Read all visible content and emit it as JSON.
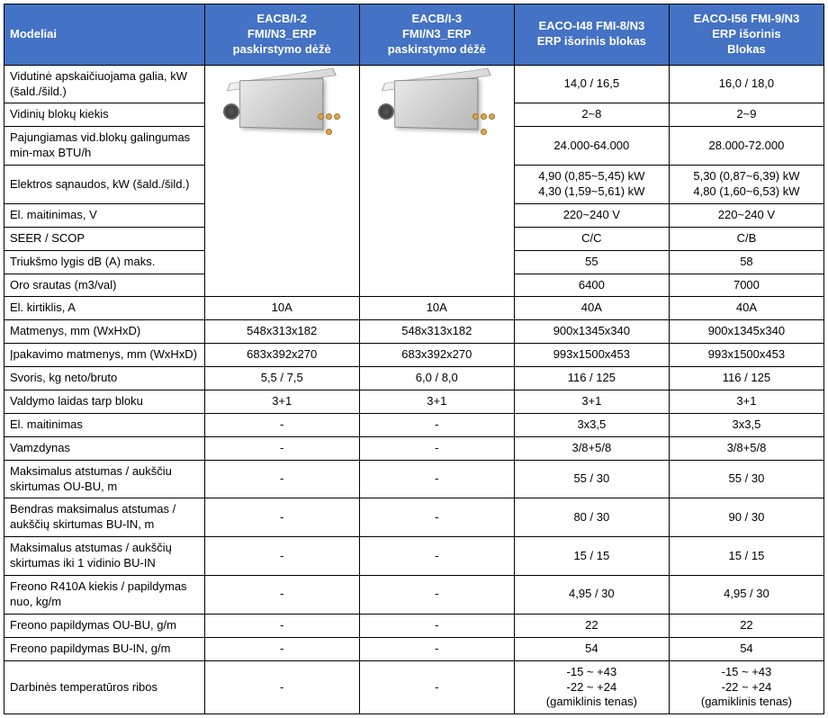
{
  "header": {
    "label": "Modeliai",
    "cols": [
      "EACB/I-2\nFMI/N3_ERP\npaskirstymo dėžė",
      "EACB/I-3\nFMI/N3_ERP\npaskirstymo dėžė",
      "EACO-I48 FMI-8/N3\nERP išorinis blokas",
      "EACO-I56 FMI-9/N3\nERP išorinis\nBlokas"
    ]
  },
  "rows": [
    {
      "label": "Vidutinė apskaičiuojama galia, kW (šald./šild.)",
      "c3": "14,0 / 16,5",
      "c4": "16,0 / 18,0",
      "image_row": true
    },
    {
      "label": "Vidinių blokų kiekis",
      "c3": "2~8",
      "c4": "2~9",
      "image_row": true
    },
    {
      "label": "Pajungiamas vid.blokų galingumas min-max BTU/h",
      "c3": "24.000-64.000",
      "c4": "28.000-72.000",
      "image_row": true
    },
    {
      "label": "Elektros sąnaudos, kW (šald./šild.)",
      "c3": "4,90 (0,85~5,45) kW\n4,30 (1,59~5,61) kW",
      "c4": "5,30 (0,87~6,39) kW\n4,80 (1,60~6,53) kW",
      "image_row": true
    },
    {
      "label": "El. maitinimas, V",
      "c3": "220~240 V",
      "c4": "220~240 V",
      "image_row": true
    },
    {
      "label": "SEER / SCOP",
      "c3": "C/C",
      "c4": "C/B",
      "image_row": true
    },
    {
      "label": "Triukšmo lygis dB (A) maks.",
      "c3": "55",
      "c4": "58",
      "image_row": true
    },
    {
      "label": "Oro srautas (m3/val)",
      "c3": "6400",
      "c4": "7000",
      "image_row": true
    },
    {
      "label": "El. kirtiklis, A",
      "c1": "10A",
      "c2": "10A",
      "c3": "40A",
      "c4": "40A"
    },
    {
      "label": "Matmenys, mm (WxHxD)",
      "c1": "548x313x182",
      "c2": "548x313x182",
      "c3": "900x1345x340",
      "c4": "900x1345x340"
    },
    {
      "label": "Įpakavimo matmenys, mm (WxHxD)",
      "c1": "683x392x270",
      "c2": "683x392x270",
      "c3": "993x1500x453",
      "c4": "993x1500x453"
    },
    {
      "label": "Svoris, kg neto/bruto",
      "c1": "5,5 / 7,5",
      "c2": "6,0 / 8,0",
      "c3": "116 / 125",
      "c4": "116 / 125"
    },
    {
      "label": "Valdymo laidas tarp bloku",
      "c1": "3+1",
      "c2": "3+1",
      "c3": "3+1",
      "c4": "3+1"
    },
    {
      "label": "El. maitinimas",
      "c1": "-",
      "c2": "-",
      "c3": "3x3,5",
      "c4": "3x3,5"
    },
    {
      "label": "Vamzdynas",
      "c1": "-",
      "c2": "-",
      "c3": "3/8+5/8",
      "c4": "3/8+5/8"
    },
    {
      "label": "Maksimalus atstumas / aukščiu skirtumas OU-BU, m",
      "c1": "-",
      "c2": "-",
      "c3": "55 / 30",
      "c4": "55 / 30"
    },
    {
      "label": "Bendras maksimalus atstumas / aukščių skirtumas BU-IN, m",
      "c1": "-",
      "c2": "-",
      "c3": "80 / 30",
      "c4": "90 / 30"
    },
    {
      "label": "Maksimalus atstumas / aukščių skirtumas iki 1 vidinio BU-IN",
      "c1": "-",
      "c2": "-",
      "c3": "15 / 15",
      "c4": "15 / 15"
    },
    {
      "label": "Freono R410A kiekis / papildymas nuo, kg/m",
      "c1": "-",
      "c2": "-",
      "c3": "4,95 / 30",
      "c4": "4,95 / 30"
    },
    {
      "label": "Freono papildymas OU-BU, g/m",
      "c1": "-",
      "c2": "-",
      "c3": "22",
      "c4": "22"
    },
    {
      "label": "Freono papildymas BU-IN, g/m",
      "c1": "-",
      "c2": "-",
      "c3": "54",
      "c4": "54"
    },
    {
      "label": "Darbinės temperatūros ribos",
      "c1": "-",
      "c2": "-",
      "c3": "-15 ~ +43\n-22 ~ +24\n(gamiklinis tenas)",
      "c4": "-15 ~ +43\n-22 ~ +24\n(gamiklinis tenas)"
    }
  ],
  "colors": {
    "header_bg": "#4472c4",
    "header_text": "#ffffff",
    "border": "#000000",
    "cell_bg": "#ffffff",
    "text": "#000000"
  },
  "fonts": {
    "family": "Arial",
    "size_pt": 10
  }
}
